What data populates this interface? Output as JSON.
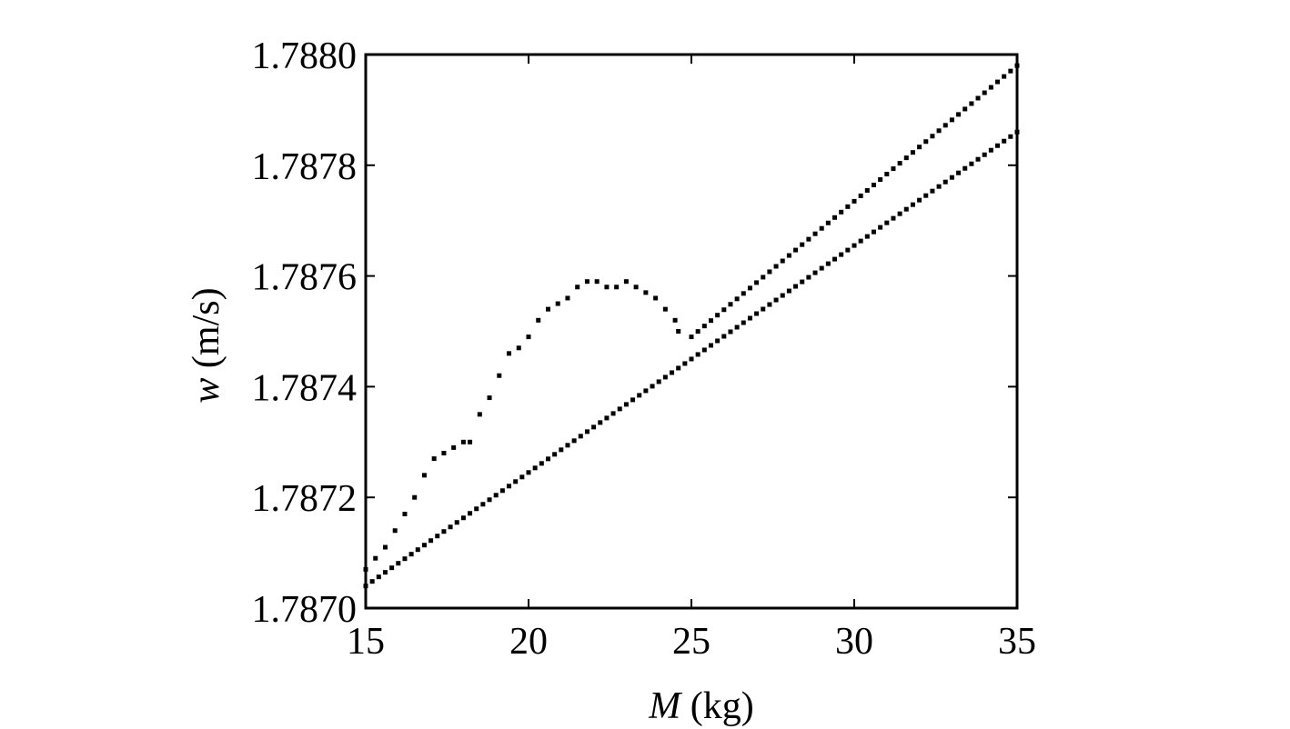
{
  "chart_data": {
    "type": "scatter",
    "title": "",
    "xlabel": {
      "var": "M",
      "unit": " (kg)"
    },
    "ylabel": {
      "var": "w",
      "unit": " (m/s)"
    },
    "xlim": [
      15,
      35
    ],
    "ylim": [
      1.787,
      1.788
    ],
    "xticks": [
      "15",
      "20",
      "25",
      "30",
      "35"
    ],
    "yticks": [
      "1.7870",
      "1.7872",
      "1.7874",
      "1.7876",
      "1.7878",
      "1.7880"
    ],
    "grid": false,
    "legend": "none",
    "marker_color": "#000000",
    "series": [
      {
        "line": {
          "x_start": 15,
          "y_start": 1.78704,
          "x_end": 35,
          "y_end": 1.78786,
          "step": 0.2
        }
      },
      {
        "line": {
          "x_start": 25,
          "y_start": 1.78749,
          "x_end": 35,
          "y_end": 1.78798,
          "step": 0.2
        }
      },
      {
        "x": [
          15.0,
          15.3,
          15.6,
          15.9,
          16.2,
          16.5,
          16.8,
          17.1,
          17.4,
          17.7,
          18.0,
          18.2,
          18.5,
          18.8,
          19.1,
          19.4,
          19.7,
          20.0,
          20.3,
          20.6,
          20.9,
          21.2,
          21.5,
          21.8,
          22.1,
          22.4,
          22.7,
          23.0,
          23.3,
          23.6,
          23.9,
          24.2,
          24.5,
          24.6
        ],
        "y": [
          1.78707,
          1.78709,
          1.78711,
          1.78714,
          1.78717,
          1.7872,
          1.78724,
          1.78727,
          1.78728,
          1.78729,
          1.7873,
          1.7873,
          1.78735,
          1.78738,
          1.78742,
          1.78746,
          1.78747,
          1.78749,
          1.78752,
          1.78754,
          1.78755,
          1.78756,
          1.78758,
          1.78759,
          1.78759,
          1.78758,
          1.78758,
          1.78759,
          1.78758,
          1.78757,
          1.78756,
          1.78754,
          1.78752,
          1.7875
        ]
      }
    ]
  }
}
